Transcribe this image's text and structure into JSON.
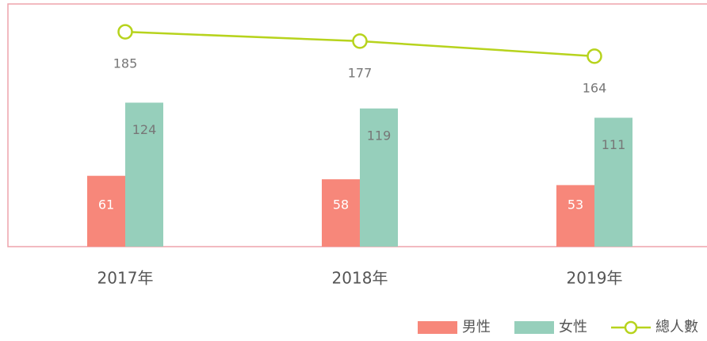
{
  "chart_data": {
    "type": "bar",
    "categories": [
      "2017年",
      "2018年",
      "2019年"
    ],
    "series": [
      {
        "name": "男性",
        "type": "bar",
        "color": "#f7877a",
        "values": [
          61,
          58,
          53
        ]
      },
      {
        "name": "女性",
        "type": "bar",
        "color": "#96cfbb",
        "values": [
          124,
          119,
          111
        ]
      },
      {
        "name": "總人數",
        "type": "line",
        "color": "#b7d31d",
        "values": [
          185,
          177,
          164
        ]
      }
    ],
    "ylim": [
      0,
      209
    ],
    "legend": "bottom-right"
  }
}
